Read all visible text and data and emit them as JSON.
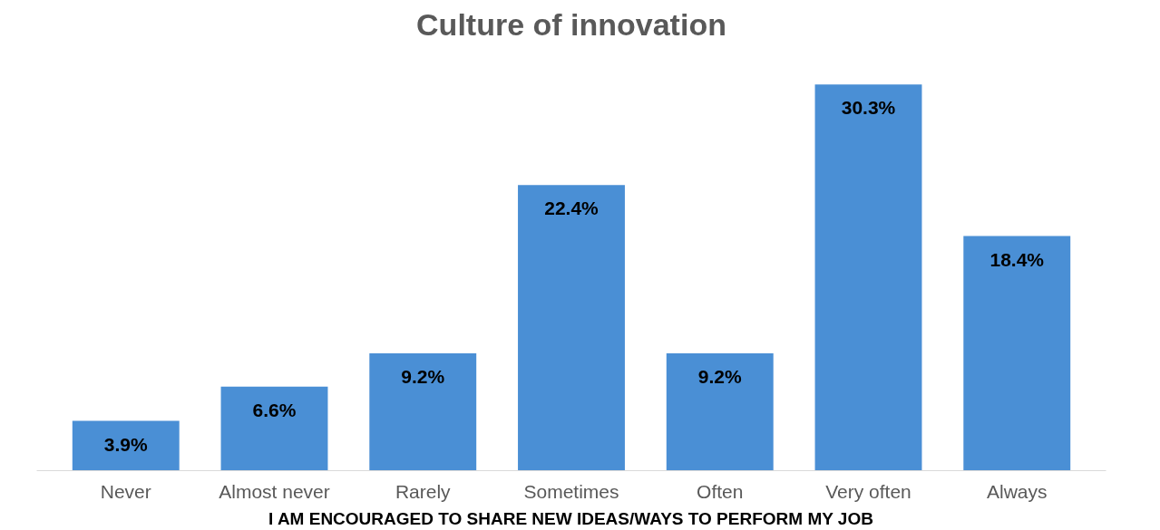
{
  "chart_data": {
    "type": "bar",
    "title": "Culture of innovation",
    "xlabel": "I AM ENCOURAGED TO SHARE NEW IDEAS/WAYS TO PERFORM MY JOB",
    "categories": [
      "Never",
      "Almost never",
      "Rarely",
      "Sometimes",
      "Often",
      "Very often",
      "Always"
    ],
    "values": [
      3.9,
      6.6,
      9.2,
      22.4,
      9.2,
      30.3,
      18.4
    ],
    "value_labels": [
      "3.9%",
      "6.6%",
      "9.2%",
      "22.4%",
      "9.2%",
      "30.3%",
      "18.4%"
    ],
    "color": "#4a8fd5",
    "grid": false,
    "tick_labels": "x"
  }
}
